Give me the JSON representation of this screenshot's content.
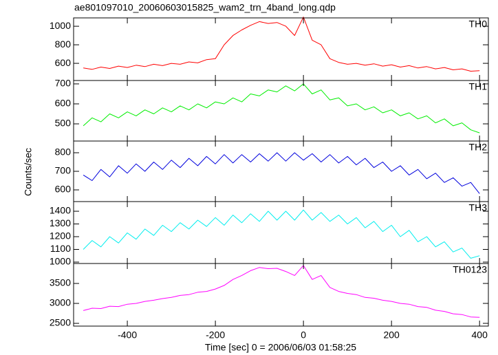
{
  "title": "ae801097010_20060603015825_wam2_trn_4band_long.qdp",
  "ylabel": "Counts/sec",
  "xlabel": "Time [sec] 0 = 2006/06/03 01:58:25",
  "chart_data": [
    {
      "type": "line",
      "xlim": [
        -522,
        420
      ],
      "xticks": [
        -400,
        -200,
        0,
        200,
        400
      ],
      "ylim": [
        415,
        1090
      ],
      "yticks": [
        600,
        800,
        1000
      ],
      "x": [
        -500,
        -480,
        -460,
        -440,
        -420,
        -400,
        -380,
        -360,
        -340,
        -320,
        -300,
        -280,
        -260,
        -240,
        -220,
        -200,
        -180,
        -160,
        -140,
        -120,
        -100,
        -80,
        -60,
        -40,
        -20,
        0,
        20,
        40,
        60,
        80,
        100,
        120,
        140,
        160,
        180,
        200,
        220,
        240,
        260,
        280,
        300,
        320,
        340,
        360,
        380,
        400
      ],
      "series": [
        {
          "name": "TH0",
          "color": "#ff0000",
          "values": [
            550,
            535,
            560,
            545,
            570,
            555,
            580,
            565,
            590,
            575,
            600,
            590,
            615,
            605,
            640,
            650,
            800,
            900,
            960,
            1010,
            1050,
            1030,
            1040,
            1000,
            900,
            1100,
            850,
            800,
            650,
            610,
            590,
            600,
            580,
            595,
            570,
            585,
            560,
            575,
            550,
            565,
            540,
            555,
            530,
            540,
            515,
            520
          ]
        }
      ]
    },
    {
      "type": "line",
      "xlim": [
        -522,
        420
      ],
      "xticks": [
        -400,
        -200,
        0,
        200,
        400
      ],
      "ylim": [
        414,
        717
      ],
      "yticks": [
        500,
        600,
        700
      ],
      "x": [
        -500,
        -480,
        -460,
        -440,
        -420,
        -400,
        -380,
        -360,
        -340,
        -320,
        -300,
        -280,
        -260,
        -240,
        -220,
        -200,
        -180,
        -160,
        -140,
        -120,
        -100,
        -80,
        -60,
        -40,
        -20,
        0,
        20,
        40,
        60,
        80,
        100,
        120,
        140,
        160,
        180,
        200,
        220,
        240,
        260,
        280,
        300,
        320,
        340,
        360,
        380,
        400
      ],
      "series": [
        {
          "name": "TH1",
          "color": "#00ee00",
          "values": [
            490,
            530,
            510,
            550,
            530,
            560,
            540,
            570,
            550,
            580,
            560,
            590,
            570,
            600,
            580,
            610,
            600,
            630,
            610,
            650,
            640,
            670,
            660,
            690,
            665,
            700,
            650,
            670,
            620,
            630,
            590,
            600,
            570,
            585,
            555,
            570,
            540,
            555,
            525,
            540,
            505,
            525,
            490,
            505,
            470,
            455
          ]
        }
      ]
    },
    {
      "type": "line",
      "xlim": [
        -522,
        420
      ],
      "xticks": [
        -400,
        -200,
        0,
        200,
        400
      ],
      "ylim": [
        537,
        863
      ],
      "yticks": [
        600,
        700,
        800
      ],
      "x": [
        -500,
        -480,
        -460,
        -440,
        -420,
        -400,
        -380,
        -360,
        -340,
        -320,
        -300,
        -280,
        -260,
        -240,
        -220,
        -200,
        -180,
        -160,
        -140,
        -120,
        -100,
        -80,
        -60,
        -40,
        -20,
        0,
        20,
        40,
        60,
        80,
        100,
        120,
        140,
        160,
        180,
        200,
        220,
        240,
        260,
        280,
        300,
        320,
        340,
        360,
        380,
        400
      ],
      "series": [
        {
          "name": "TH2",
          "color": "#0000dd",
          "values": [
            680,
            650,
            710,
            670,
            730,
            690,
            740,
            700,
            750,
            710,
            760,
            720,
            770,
            730,
            780,
            740,
            790,
            745,
            790,
            750,
            795,
            755,
            800,
            755,
            800,
            760,
            795,
            750,
            790,
            745,
            780,
            735,
            770,
            720,
            750,
            700,
            730,
            680,
            710,
            660,
            690,
            640,
            665,
            620,
            640,
            580
          ]
        }
      ]
    },
    {
      "type": "line",
      "xlim": [
        -522,
        420
      ],
      "xticks": [
        -400,
        -200,
        0,
        200,
        400
      ],
      "ylim": [
        989,
        1476
      ],
      "yticks": [
        1000,
        1100,
        1200,
        1300,
        1400
      ],
      "x": [
        -500,
        -480,
        -460,
        -440,
        -420,
        -400,
        -380,
        -360,
        -340,
        -320,
        -300,
        -280,
        -260,
        -240,
        -220,
        -200,
        -180,
        -160,
        -140,
        -120,
        -100,
        -80,
        -60,
        -40,
        -20,
        0,
        20,
        40,
        60,
        80,
        100,
        120,
        140,
        160,
        180,
        200,
        220,
        240,
        260,
        280,
        300,
        320,
        340,
        360,
        380,
        400
      ],
      "series": [
        {
          "name": "TH3",
          "color": "#00eeee",
          "values": [
            1100,
            1170,
            1120,
            1200,
            1150,
            1230,
            1180,
            1260,
            1210,
            1290,
            1240,
            1310,
            1260,
            1330,
            1280,
            1350,
            1290,
            1370,
            1310,
            1380,
            1320,
            1400,
            1330,
            1400,
            1330,
            1410,
            1330,
            1390,
            1320,
            1370,
            1300,
            1350,
            1270,
            1320,
            1240,
            1290,
            1200,
            1250,
            1160,
            1200,
            1120,
            1160,
            1080,
            1110,
            1030,
            1050
          ]
        }
      ]
    },
    {
      "type": "line",
      "xlim": [
        -522,
        420
      ],
      "xticks": [
        -400,
        -200,
        0,
        200,
        400
      ],
      "ylim": [
        2431,
        4000
      ],
      "yticks": [
        2500,
        3000,
        3500
      ],
      "x": [
        -500,
        -480,
        -460,
        -440,
        -420,
        -400,
        -380,
        -360,
        -340,
        -320,
        -300,
        -280,
        -260,
        -240,
        -220,
        -200,
        -180,
        -160,
        -140,
        -120,
        -100,
        -80,
        -60,
        -40,
        -20,
        0,
        20,
        40,
        60,
        80,
        100,
        120,
        140,
        160,
        180,
        200,
        220,
        240,
        260,
        280,
        300,
        320,
        340,
        360,
        380,
        400
      ],
      "series": [
        {
          "name": "TH0123",
          "color": "#ff00ff",
          "values": [
            2820,
            2880,
            2870,
            2930,
            2920,
            2980,
            3000,
            3050,
            3080,
            3120,
            3150,
            3200,
            3220,
            3280,
            3300,
            3360,
            3450,
            3600,
            3700,
            3820,
            3900,
            3870,
            3880,
            3800,
            3700,
            3950,
            3600,
            3700,
            3400,
            3300,
            3250,
            3220,
            3150,
            3130,
            3080,
            3050,
            3000,
            2980,
            2920,
            2900,
            2830,
            2800,
            2740,
            2720,
            2660,
            2650
          ]
        }
      ]
    }
  ]
}
